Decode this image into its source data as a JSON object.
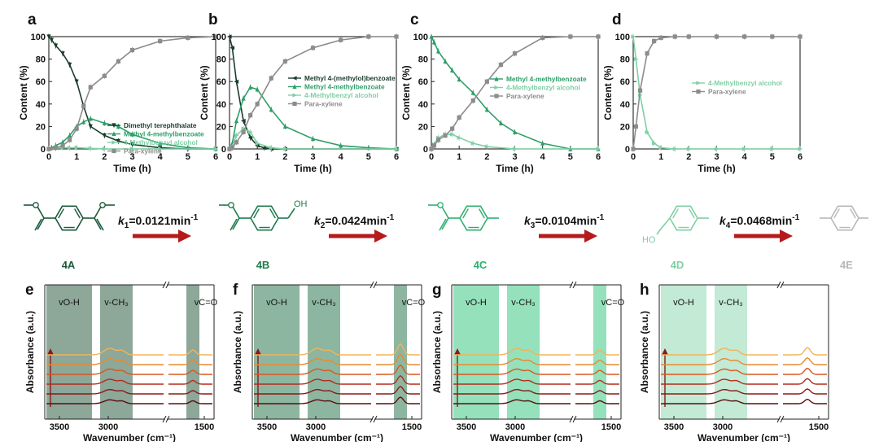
{
  "chart_data": [
    {
      "type": "line",
      "panel": "a",
      "xlabel": "Time (h)",
      "ylabel": "Content (%)",
      "xlim": [
        0,
        6
      ],
      "ylim": [
        0,
        100
      ],
      "xticks": [
        "0",
        "1",
        "2",
        "3",
        "4",
        "5",
        "6"
      ],
      "yticks": [
        "0",
        "20",
        "40",
        "60",
        "80",
        "100"
      ],
      "legend_position": "center-right",
      "series": [
        {
          "name": "Dimethyl terephthalate",
          "color": "#1a3d2b",
          "marker": "triangle-down",
          "points": [
            [
              0,
              100
            ],
            [
              0.1,
              97
            ],
            [
              0.25,
              92
            ],
            [
              0.5,
              85
            ],
            [
              0.75,
              75
            ],
            [
              1,
              60
            ],
            [
              1.25,
              38
            ],
            [
              1.5,
              20
            ],
            [
              2,
              12
            ],
            [
              2.5,
              7
            ],
            [
              3,
              4
            ],
            [
              4,
              1
            ],
            [
              5,
              0
            ],
            [
              6,
              0
            ]
          ]
        },
        {
          "name": "Methyl 4-methylbenzoate",
          "color": "#2e9e68",
          "marker": "triangle",
          "points": [
            [
              0,
              0
            ],
            [
              0.1,
              1
            ],
            [
              0.25,
              3
            ],
            [
              0.5,
              6
            ],
            [
              0.75,
              12
            ],
            [
              1,
              20
            ],
            [
              1.25,
              24
            ],
            [
              1.5,
              27
            ],
            [
              2,
              23
            ],
            [
              2.5,
              20
            ],
            [
              3,
              13
            ],
            [
              4,
              5
            ],
            [
              5,
              1
            ],
            [
              6,
              0
            ]
          ]
        },
        {
          "name": "4-Methylbenzyl alcohol",
          "color": "#7fcfa5",
          "marker": "triangle-right",
          "points": [
            [
              0,
              0
            ],
            [
              0.25,
              0.5
            ],
            [
              0.5,
              1
            ],
            [
              0.75,
              1
            ],
            [
              1,
              1
            ],
            [
              1.5,
              0.5
            ],
            [
              2,
              0
            ],
            [
              3,
              0
            ],
            [
              4,
              0
            ],
            [
              6,
              0
            ]
          ]
        },
        {
          "name": "Para-xylene",
          "color": "#8c8c8c",
          "marker": "square",
          "points": [
            [
              0,
              0
            ],
            [
              0.25,
              1
            ],
            [
              0.5,
              3
            ],
            [
              0.75,
              8
            ],
            [
              1,
              18
            ],
            [
              1.25,
              38
            ],
            [
              1.5,
              55
            ],
            [
              2,
              65
            ],
            [
              2.5,
              78
            ],
            [
              3,
              88
            ],
            [
              4,
              96
            ],
            [
              5,
              99
            ],
            [
              6,
              100
            ]
          ]
        }
      ]
    },
    {
      "type": "line",
      "panel": "b",
      "xlabel": "Time (h)",
      "ylabel": "Content (%)",
      "xlim": [
        0,
        6
      ],
      "ylim": [
        0,
        100
      ],
      "xticks": [
        "0",
        "1",
        "2",
        "3",
        "4",
        "5",
        "6"
      ],
      "yticks": [
        "0",
        "20",
        "40",
        "60",
        "80",
        "100"
      ],
      "legend_position": "center-right",
      "series": [
        {
          "name": "Methyl 4-(methylol)benzoate",
          "color": "#1a3d2b",
          "marker": "triangle-left",
          "points": [
            [
              0,
              100
            ],
            [
              0.1,
              90
            ],
            [
              0.25,
              60
            ],
            [
              0.5,
              25
            ],
            [
              0.75,
              10
            ],
            [
              1,
              3
            ],
            [
              1.25,
              1
            ],
            [
              1.5,
              0
            ],
            [
              2,
              0
            ],
            [
              6,
              0
            ]
          ]
        },
        {
          "name": "Methyl 4-methylbenzoate",
          "color": "#2e9e68",
          "marker": "triangle",
          "points": [
            [
              0,
              0
            ],
            [
              0.1,
              5
            ],
            [
              0.25,
              25
            ],
            [
              0.5,
              45
            ],
            [
              0.75,
              55
            ],
            [
              1,
              53
            ],
            [
              1.5,
              35
            ],
            [
              2,
              20
            ],
            [
              3,
              9
            ],
            [
              4,
              3
            ],
            [
              5,
              1
            ],
            [
              6,
              0
            ]
          ]
        },
        {
          "name": "4-Methylbenzyl alcohol",
          "color": "#7fcfa5",
          "marker": "triangle-right",
          "points": [
            [
              0,
              0
            ],
            [
              0.1,
              2
            ],
            [
              0.25,
              12
            ],
            [
              0.5,
              18
            ],
            [
              0.75,
              15
            ],
            [
              1,
              5
            ],
            [
              1.5,
              1
            ],
            [
              2,
              0
            ],
            [
              6,
              0
            ]
          ]
        },
        {
          "name": "Para-xylene",
          "color": "#8c8c8c",
          "marker": "square",
          "points": [
            [
              0,
              0
            ],
            [
              0.1,
              1
            ],
            [
              0.25,
              6
            ],
            [
              0.5,
              15
            ],
            [
              0.75,
              30
            ],
            [
              1,
              40
            ],
            [
              1.5,
              63
            ],
            [
              2,
              78
            ],
            [
              3,
              90
            ],
            [
              4,
              97
            ],
            [
              5,
              100
            ],
            [
              6,
              100
            ]
          ]
        }
      ]
    },
    {
      "type": "line",
      "panel": "c",
      "xlabel": "Time (h)",
      "ylabel": "Content (%)",
      "xlim": [
        0,
        6
      ],
      "ylim": [
        0,
        100
      ],
      "xticks": [
        "0",
        "1",
        "2",
        "3",
        "4",
        "5",
        "6"
      ],
      "yticks": [
        "0",
        "20",
        "40",
        "60",
        "80",
        "100"
      ],
      "legend_position": "center-right",
      "series": [
        {
          "name": "Methyl 4-methylbenzoate",
          "color": "#2e9e68",
          "marker": "triangle",
          "points": [
            [
              0,
              100
            ],
            [
              0.1,
              95
            ],
            [
              0.25,
              87
            ],
            [
              0.5,
              78
            ],
            [
              0.75,
              70
            ],
            [
              1,
              62
            ],
            [
              1.5,
              50
            ],
            [
              2,
              35
            ],
            [
              2.5,
              23
            ],
            [
              3,
              15
            ],
            [
              4,
              5
            ],
            [
              5,
              0
            ],
            [
              6,
              0
            ]
          ]
        },
        {
          "name": "4-Methylbenzyl alcohol",
          "color": "#7fcfa5",
          "marker": "triangle-right",
          "points": [
            [
              0,
              0
            ],
            [
              0.1,
              4
            ],
            [
              0.25,
              10
            ],
            [
              0.5,
              13
            ],
            [
              0.75,
              13
            ],
            [
              1,
              10
            ],
            [
              1.5,
              5
            ],
            [
              2,
              2
            ],
            [
              3,
              0
            ],
            [
              6,
              0
            ]
          ]
        },
        {
          "name": "Para-xylene",
          "color": "#8c8c8c",
          "marker": "square",
          "points": [
            [
              0,
              0
            ],
            [
              0.1,
              3
            ],
            [
              0.25,
              8
            ],
            [
              0.5,
              12
            ],
            [
              0.75,
              18
            ],
            [
              1,
              28
            ],
            [
              1.5,
              43
            ],
            [
              2,
              60
            ],
            [
              2.5,
              75
            ],
            [
              3,
              85
            ],
            [
              4,
              99
            ],
            [
              5,
              100
            ],
            [
              6,
              100
            ]
          ]
        }
      ]
    },
    {
      "type": "line",
      "panel": "d",
      "xlabel": "Time (h)",
      "ylabel": "Content (%)",
      "xlim": [
        0,
        6
      ],
      "ylim": [
        0,
        100
      ],
      "xticks": [
        "0",
        "1",
        "2",
        "3",
        "4",
        "5",
        "6"
      ],
      "yticks": [
        "0",
        "20",
        "40",
        "60",
        "80",
        "100"
      ],
      "legend_position": "center-right",
      "series": [
        {
          "name": "4-Methylbenzyl alcohol",
          "color": "#7fcfa5",
          "marker": "triangle-right",
          "points": [
            [
              0,
              100
            ],
            [
              0.1,
              80
            ],
            [
              0.25,
              48
            ],
            [
              0.5,
              15
            ],
            [
              0.75,
              5
            ],
            [
              1,
              1
            ],
            [
              1.5,
              0
            ],
            [
              2,
              0
            ],
            [
              3,
              0
            ],
            [
              4,
              0
            ],
            [
              5,
              0
            ],
            [
              6,
              0
            ]
          ]
        },
        {
          "name": "Para-xylene",
          "color": "#8c8c8c",
          "marker": "square",
          "points": [
            [
              0,
              0
            ],
            [
              0.1,
              20
            ],
            [
              0.25,
              52
            ],
            [
              0.5,
              85
            ],
            [
              0.75,
              96
            ],
            [
              1,
              99
            ],
            [
              1.5,
              100
            ],
            [
              2,
              100
            ],
            [
              3,
              100
            ],
            [
              4,
              100
            ],
            [
              5,
              100
            ],
            [
              6,
              100
            ]
          ]
        }
      ]
    },
    {
      "type": "line",
      "panel": "e",
      "xlabel": "Wavenumber (cm⁻¹)",
      "ylabel": "Absorbance (a.u.)",
      "x_axis": "reversed, broken",
      "xticks": [
        "3500",
        "3000",
        "1500"
      ],
      "bands": [
        "vO-H",
        "v-CH₃",
        "vC=O"
      ],
      "band_color": "#2f5e45"
    },
    {
      "type": "line",
      "panel": "f",
      "xlabel": "Wavenumber (cm⁻¹)",
      "ylabel": "Absorbance (a.u.)",
      "x_axis": "reversed, broken",
      "xticks": [
        "3500",
        "3000",
        "1500"
      ],
      "bands": [
        "vO-H",
        "v-CH₃",
        "vC=O"
      ],
      "band_color": "#2f7a52"
    },
    {
      "type": "line",
      "panel": "g",
      "xlabel": "Wavenumber (cm⁻¹)",
      "ylabel": "Absorbance (a.u.)",
      "x_axis": "reversed, broken",
      "xticks": [
        "3500",
        "3000",
        "1500"
      ],
      "bands": [
        "vO-H",
        "v-CH₃",
        "vC=O"
      ],
      "band_color": "#3cc983"
    },
    {
      "type": "line",
      "panel": "h",
      "xlabel": "Wavenumber (cm⁻¹)",
      "ylabel": "Absorbance (a.u.)",
      "x_axis": "reversed, broken",
      "xticks": [
        "3500",
        "3000",
        "1500"
      ],
      "bands": [
        "vO-H",
        "v-CH₃"
      ],
      "band_color": "#8fd8b0"
    }
  ],
  "scheme": {
    "compounds": [
      {
        "label": "4A",
        "color": "#1a5a3a"
      },
      {
        "label": "4B",
        "color": "#1f7a4d"
      },
      {
        "label": "4C",
        "color": "#2eb070"
      },
      {
        "label": "4D",
        "color": "#7fcfa5"
      },
      {
        "label": "4E",
        "color": "#b8b8b8"
      }
    ],
    "rates": [
      {
        "symbol": "k",
        "sub": "1",
        "value": "=0.0121min",
        "sup": "-1"
      },
      {
        "symbol": "k",
        "sub": "2",
        "value": "=0.0424min",
        "sup": "-1"
      },
      {
        "symbol": "k",
        "sub": "3",
        "value": "=0.0104min",
        "sup": "-1"
      },
      {
        "symbol": "k",
        "sub": "4",
        "value": "=0.0468min",
        "sup": "-1"
      }
    ],
    "substituent_labels": {
      "hydroxyl": "OH",
      "alkoxy": "HO"
    },
    "arrow_color": "#b51a1a"
  },
  "ir_trace_colors": [
    "#5a0f0f",
    "#8a1a1a",
    "#b52a1a",
    "#d9571f",
    "#ea8a2e",
    "#f2b35a"
  ]
}
